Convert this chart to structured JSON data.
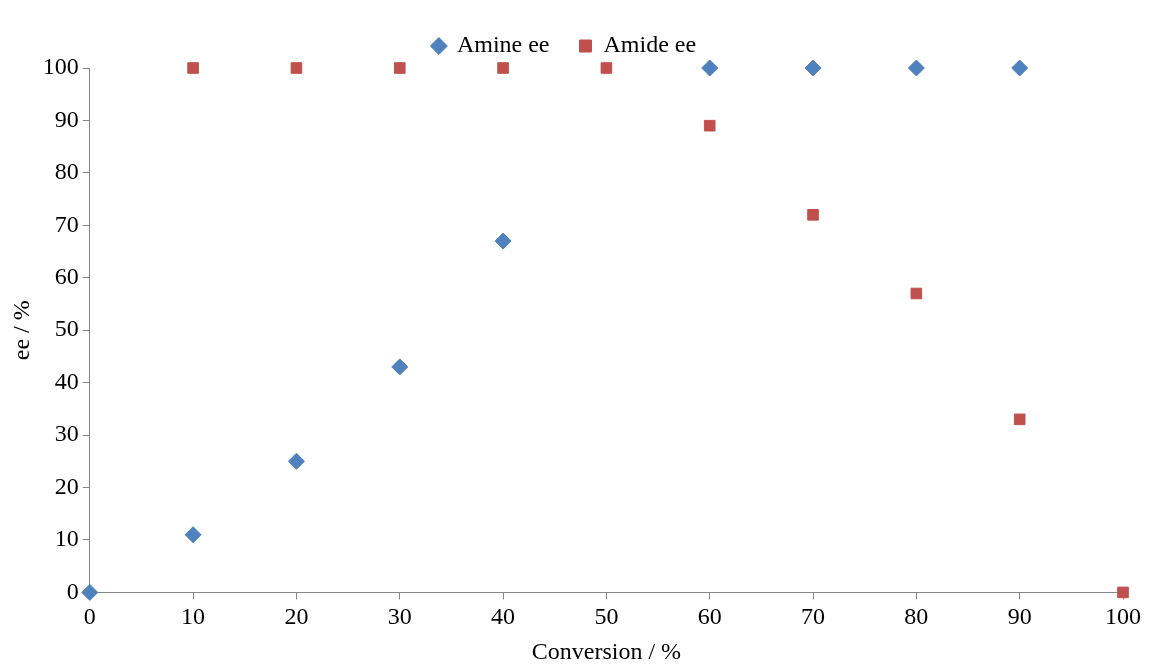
{
  "chart_data": {
    "type": "scatter",
    "xlabel": "Conversion / %",
    "ylabel": "ee / %",
    "series": [
      {
        "name": "Amine ee",
        "color": "#4f81bd",
        "marker": "diamond",
        "x": [
          0,
          10,
          20,
          30,
          40,
          60,
          70,
          80,
          90
        ],
        "values": [
          0,
          11,
          25,
          43,
          67,
          100,
          100,
          100,
          100
        ]
      },
      {
        "name": "Amide ee",
        "color": "#c0504d",
        "marker": "square",
        "x": [
          10,
          20,
          30,
          40,
          50,
          60,
          70,
          80,
          90,
          100
        ],
        "values": [
          100,
          100,
          100,
          100,
          100,
          89,
          72,
          57,
          33,
          0
        ]
      }
    ],
    "xlim": [
      0,
      100
    ],
    "xticks": [
      0,
      10,
      20,
      30,
      40,
      50,
      60,
      70,
      80,
      90,
      100
    ],
    "ylim": [
      0,
      100
    ],
    "yticks": [
      0,
      10,
      20,
      30,
      40,
      50,
      60,
      70,
      80,
      90,
      100
    ],
    "grid": false,
    "legend": "top"
  }
}
